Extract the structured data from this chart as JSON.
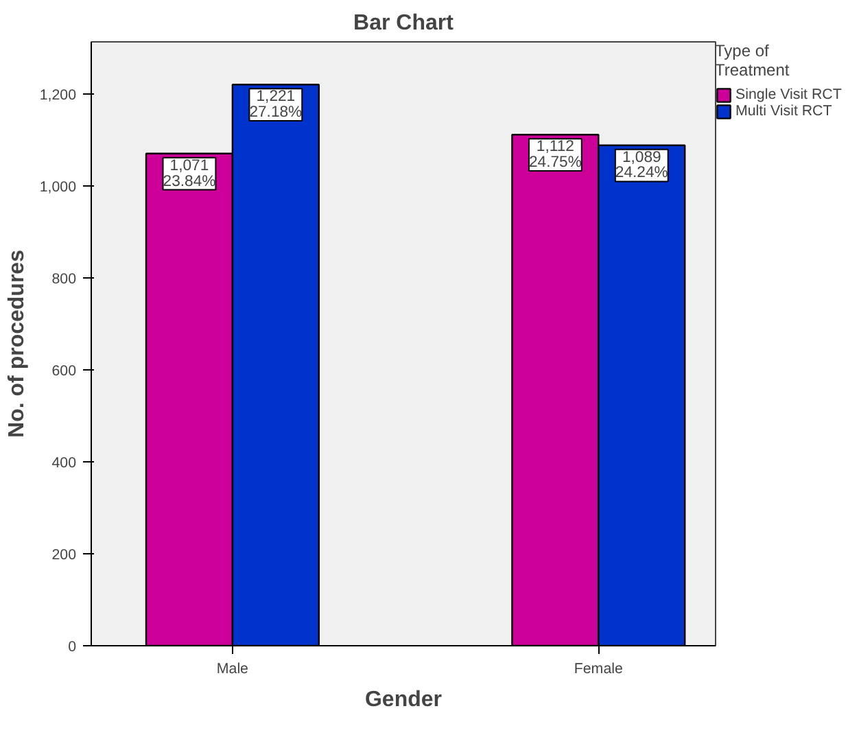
{
  "chart_data": {
    "type": "bar",
    "title": "Bar Chart",
    "xlabel": "Gender",
    "ylabel": "No. of procedures",
    "legend_title": "Type of\nTreatment",
    "categories": [
      "Male",
      "Female"
    ],
    "series": [
      {
        "name": "Single Visit RCT",
        "color": "#cc0099",
        "values": [
          1071,
          1112
        ],
        "value_labels": [
          "1,071\n23.84%",
          "1,112\n24.75%"
        ]
      },
      {
        "name": "Multi Visit RCT",
        "color": "#0033cc",
        "values": [
          1221,
          1089
        ],
        "value_labels": [
          "1,221\n27.18%",
          "1,089\n24.24%"
        ]
      }
    ],
    "ylim": [
      0,
      1314
    ],
    "yticks": [
      0,
      {
        "value": 200,
        "label": "200"
      },
      {
        "value": 400,
        "label": "400"
      },
      {
        "value": 600,
        "label": "600"
      },
      {
        "value": 800,
        "label": "800"
      },
      {
        "value": 1000,
        "label": "1,000"
      },
      {
        "value": 1200,
        "label": "1,200"
      }
    ],
    "grid": false,
    "legend": "right"
  }
}
